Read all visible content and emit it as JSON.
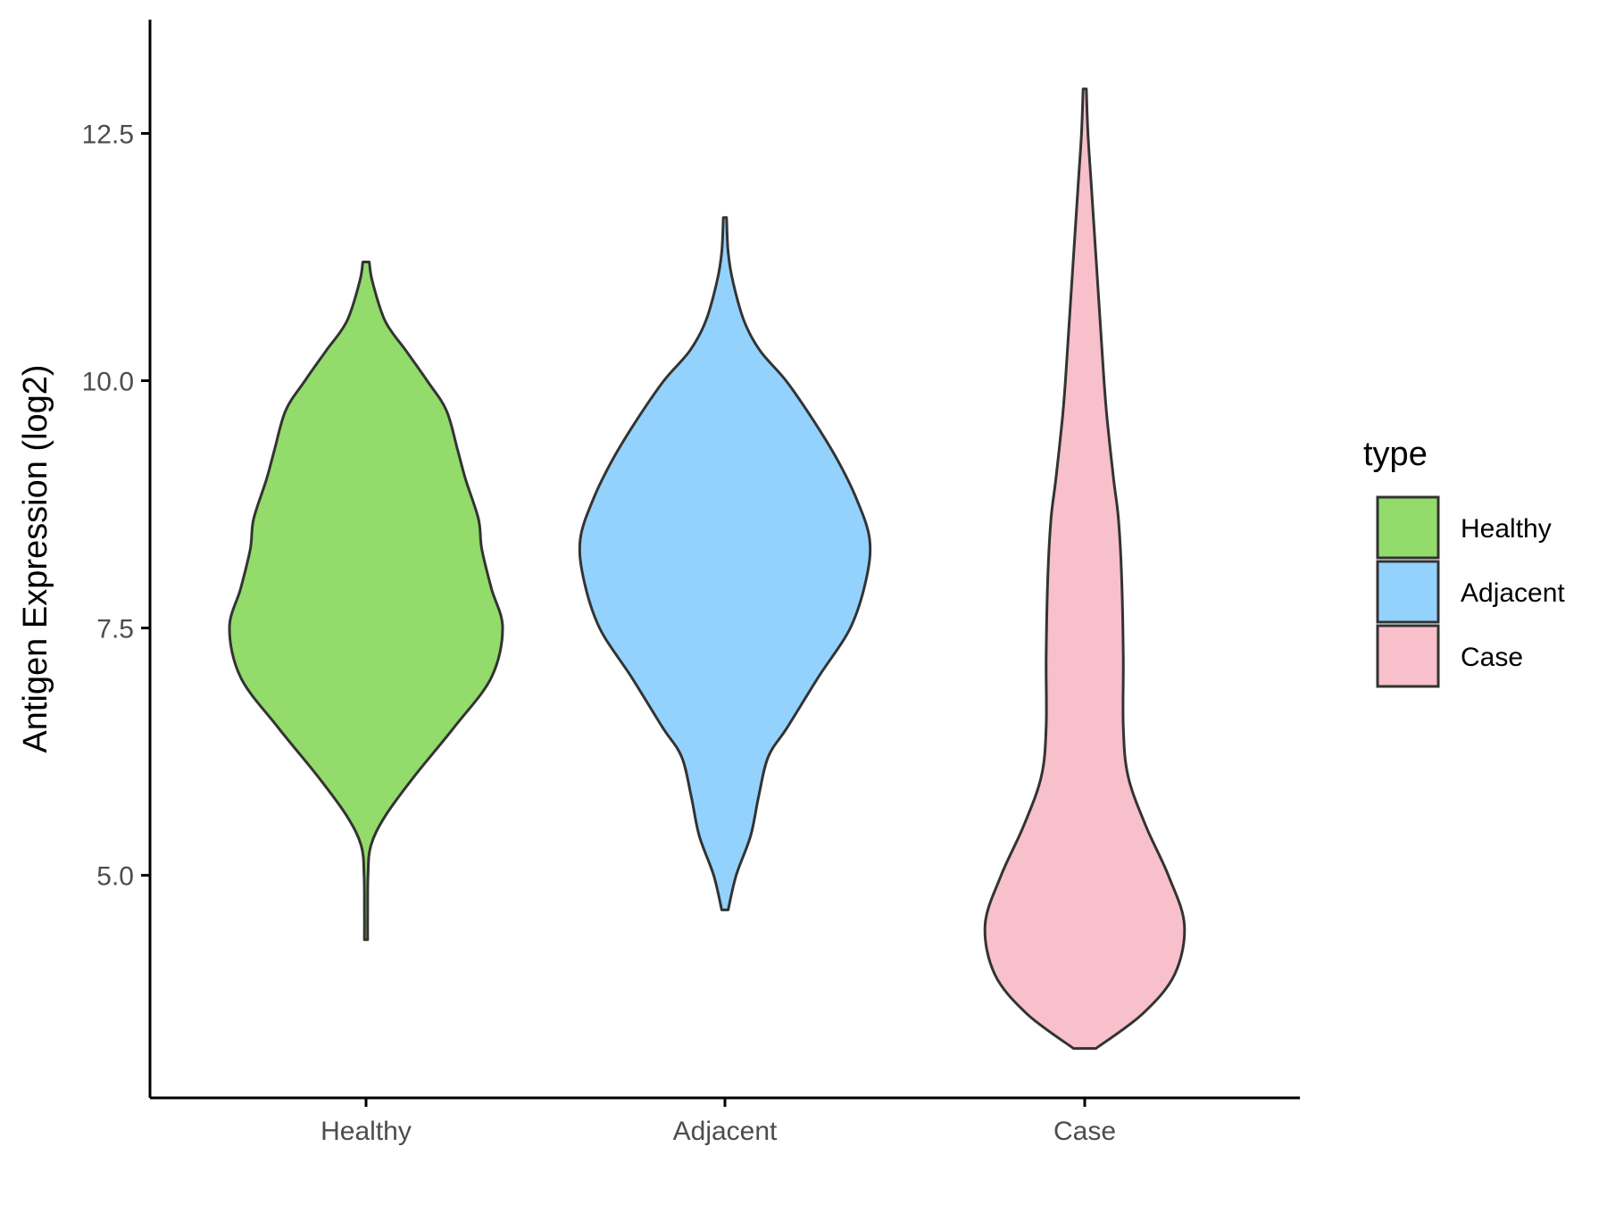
{
  "chart_data": {
    "type": "violin",
    "ylabel": "Antigen Expression (log2)",
    "xlabel": "",
    "y_range": [
      2.75,
      13.65
    ],
    "y_ticks": [
      5.0,
      7.5,
      10.0,
      12.5
    ],
    "y_tick_labels": [
      "5.0",
      "7.5",
      "10.0",
      "12.5"
    ],
    "categories": [
      "Healthy",
      "Adjacent",
      "Case"
    ],
    "grid": false,
    "legend": {
      "title": "type",
      "position": "right",
      "entries": [
        "Healthy",
        "Adjacent",
        "Case"
      ]
    },
    "series": [
      {
        "name": "Healthy",
        "color": "#93DB6A",
        "y_min": 4.35,
        "y_max": 11.2,
        "density_profile": [
          [
            4.35,
            0.01
          ],
          [
            4.6,
            0.01
          ],
          [
            5.0,
            0.012
          ],
          [
            5.3,
            0.03
          ],
          [
            5.6,
            0.12
          ],
          [
            6.0,
            0.3
          ],
          [
            6.5,
            0.55
          ],
          [
            7.0,
            0.78
          ],
          [
            7.5,
            0.85
          ],
          [
            7.9,
            0.78
          ],
          [
            8.3,
            0.72
          ],
          [
            8.6,
            0.7
          ],
          [
            9.0,
            0.62
          ],
          [
            9.3,
            0.57
          ],
          [
            9.7,
            0.5
          ],
          [
            10.0,
            0.38
          ],
          [
            10.3,
            0.25
          ],
          [
            10.6,
            0.12
          ],
          [
            11.0,
            0.04
          ],
          [
            11.2,
            0.02
          ]
        ]
      },
      {
        "name": "Adjacent",
        "color": "#94D2FE",
        "y_min": 4.65,
        "y_max": 11.65,
        "density_profile": [
          [
            4.65,
            0.02
          ],
          [
            5.0,
            0.07
          ],
          [
            5.4,
            0.16
          ],
          [
            5.8,
            0.21
          ],
          [
            6.2,
            0.27
          ],
          [
            6.5,
            0.39
          ],
          [
            7.0,
            0.58
          ],
          [
            7.5,
            0.78
          ],
          [
            8.0,
            0.88
          ],
          [
            8.4,
            0.9
          ],
          [
            8.8,
            0.82
          ],
          [
            9.2,
            0.7
          ],
          [
            9.6,
            0.55
          ],
          [
            10.0,
            0.38
          ],
          [
            10.3,
            0.22
          ],
          [
            10.6,
            0.12
          ],
          [
            11.0,
            0.05
          ],
          [
            11.3,
            0.02
          ],
          [
            11.65,
            0.01
          ]
        ]
      },
      {
        "name": "Case",
        "color": "#F7C0CB",
        "y_min": 3.25,
        "y_max": 12.95,
        "density_profile": [
          [
            3.25,
            0.07
          ],
          [
            3.6,
            0.36
          ],
          [
            4.0,
            0.56
          ],
          [
            4.5,
            0.62
          ],
          [
            5.0,
            0.52
          ],
          [
            5.5,
            0.38
          ],
          [
            6.0,
            0.27
          ],
          [
            6.5,
            0.24
          ],
          [
            7.2,
            0.24
          ],
          [
            8.0,
            0.23
          ],
          [
            8.6,
            0.21
          ],
          [
            9.0,
            0.18
          ],
          [
            9.6,
            0.14
          ],
          [
            10.0,
            0.12
          ],
          [
            10.5,
            0.1
          ],
          [
            11.0,
            0.08
          ],
          [
            11.5,
            0.06
          ],
          [
            12.0,
            0.04
          ],
          [
            12.5,
            0.02
          ],
          [
            12.95,
            0.01
          ]
        ]
      }
    ]
  }
}
